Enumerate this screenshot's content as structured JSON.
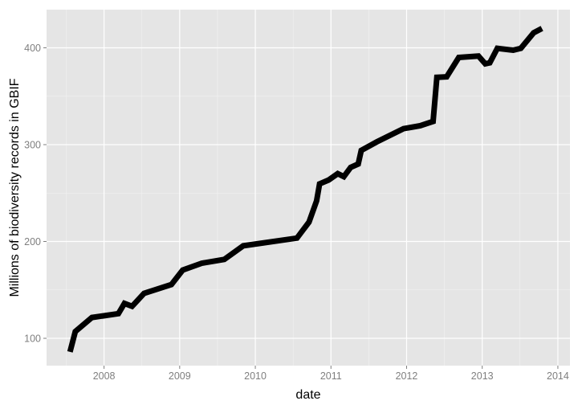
{
  "chart_data": {
    "type": "line",
    "title": "",
    "xlabel": "date",
    "ylabel": "Millions of biodiversity records in GBIF",
    "xlim": [
      2007.24,
      2014.16
    ],
    "ylim": [
      71.8,
      439.4
    ],
    "x_ticks": [
      2008,
      2009,
      2010,
      2011,
      2012,
      2013,
      2014
    ],
    "x_tick_labels": [
      "2008",
      "2009",
      "2010",
      "2011",
      "2012",
      "2013",
      "2014"
    ],
    "y_ticks": [
      100,
      200,
      300,
      400
    ],
    "y_tick_labels": [
      "100",
      "200",
      "300",
      "400"
    ],
    "grid": true,
    "panel_color": "#e5e5e5",
    "line_color": "#000000",
    "series": [
      {
        "x": [
          2007.55,
          2007.62,
          2007.84,
          2008.19,
          2008.27,
          2008.37,
          2008.53,
          2008.89,
          2009.04,
          2009.29,
          2009.59,
          2009.84,
          2010.55,
          2010.71,
          2010.81,
          2010.85,
          2010.97,
          2011.09,
          2011.17,
          2011.26,
          2011.36,
          2011.4,
          2011.61,
          2011.96,
          2012.18,
          2012.35,
          2012.4,
          2012.53,
          2012.69,
          2012.95,
          2013.04,
          2013.1,
          2013.2,
          2013.41,
          2013.51,
          2013.68,
          2013.79
        ],
        "y": [
          86,
          107,
          121.5,
          125.5,
          136,
          133,
          146.5,
          155.5,
          170.5,
          177.5,
          181.5,
          195.5,
          203.5,
          220,
          242,
          259.5,
          263.5,
          270,
          267,
          276.5,
          280,
          294,
          303,
          316.5,
          319.5,
          324,
          369.5,
          370,
          390,
          391.5,
          383.5,
          384.5,
          399.5,
          397.5,
          399.5,
          415.5,
          420
        ]
      }
    ]
  }
}
